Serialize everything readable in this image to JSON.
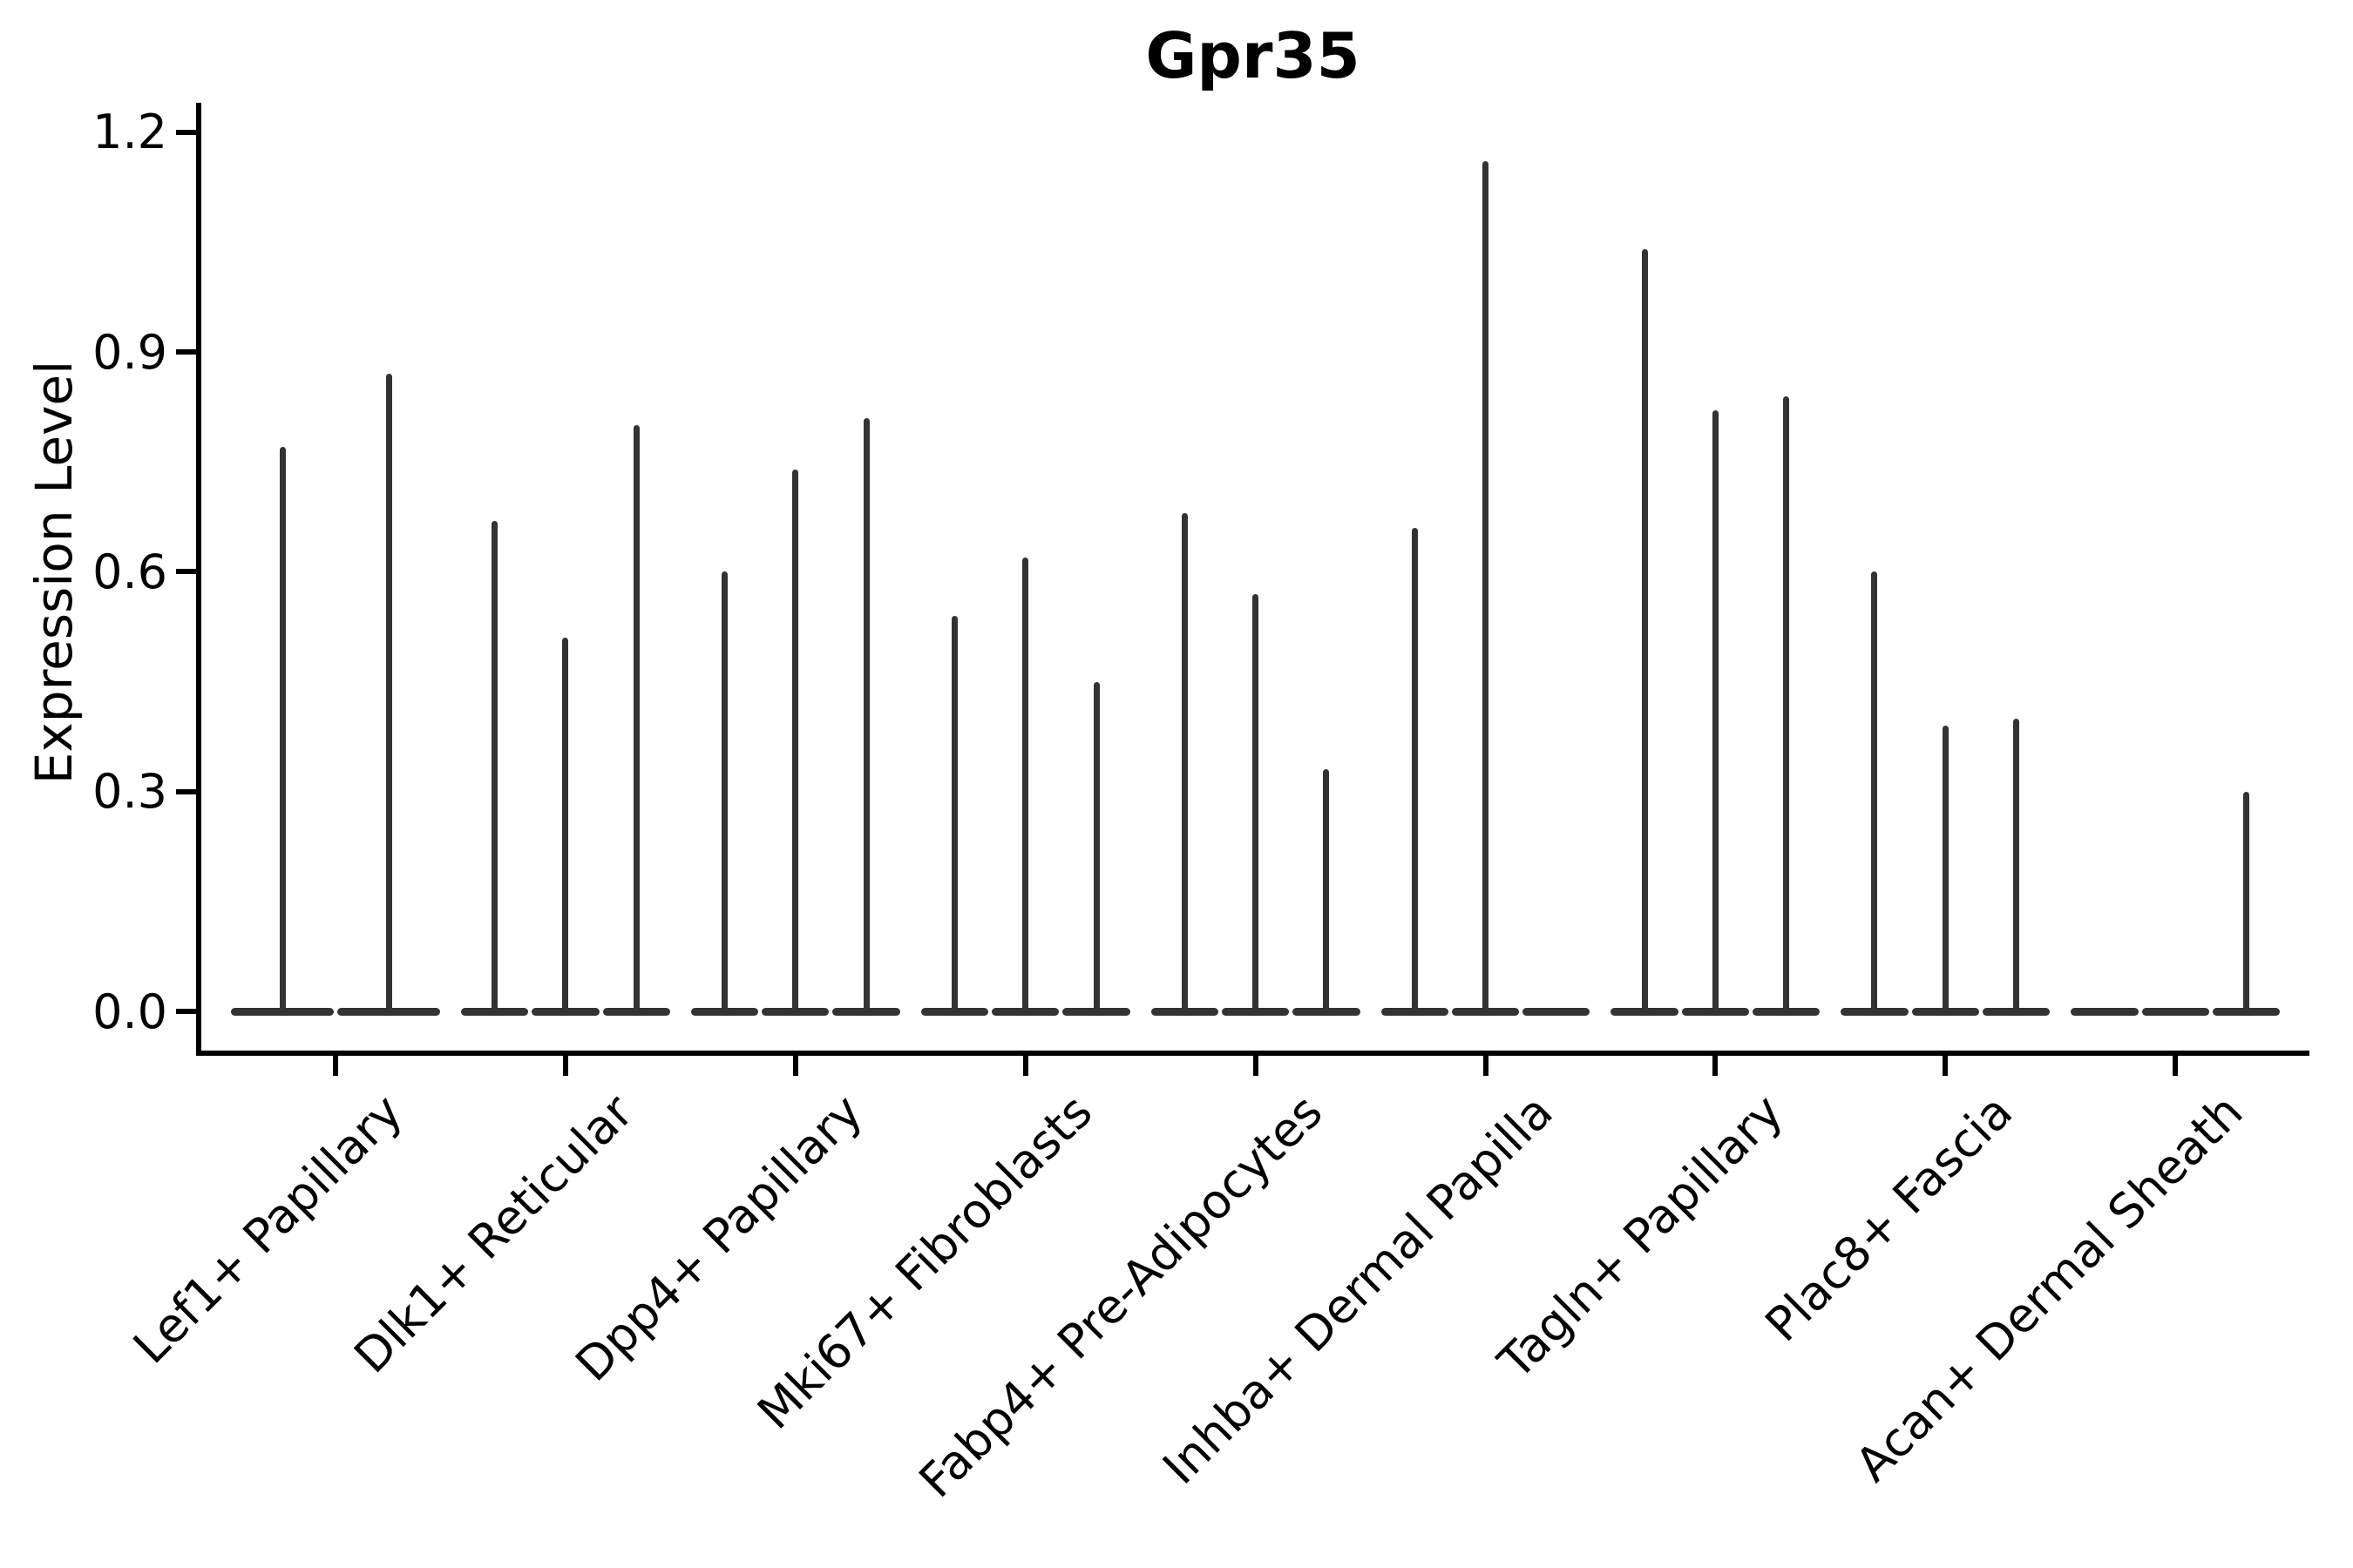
{
  "title": "Gpr35",
  "y_axis": {
    "label": "Expression Level",
    "tick_labels": [
      "0.0",
      "0.3",
      "0.6",
      "0.9",
      "1.2"
    ]
  },
  "chart_data": {
    "type": "violin",
    "title": "Gpr35",
    "xlabel": "",
    "ylabel": "Expression Level",
    "ylim": [
      0,
      1.24
    ],
    "yticks": [
      0.0,
      0.3,
      0.6,
      0.9,
      1.2
    ],
    "grid": false,
    "legend": "none",
    "style_note": "needle violin plot: each violin is a flat mass at 0 with a thin spike up to its max expression value; 0 means a flat violin with no spike",
    "categories": [
      "Lef1+ Papillary",
      "Dlk1+ Reticular",
      "Dpp4+ Papillary",
      "Mki67+ Fibroblasts",
      "Fabp4+ Pre-Adipocytes",
      "Inhba+ Dermal Papilla",
      "Tagln+ Papillary",
      "Plac8+ Fascia",
      "Acan+ Dermal Sheath"
    ],
    "groups": [
      {
        "category": "Lef1+ Papillary",
        "violin_max_values": [
          0.77,
          0.87
        ]
      },
      {
        "category": "Dlk1+ Reticular",
        "violin_max_values": [
          0.67,
          0.51,
          0.8
        ]
      },
      {
        "category": "Dpp4+ Papillary",
        "violin_max_values": [
          0.6,
          0.74,
          0.81
        ]
      },
      {
        "category": "Mki67+ Fibroblasts",
        "violin_max_values": [
          0.54,
          0.62,
          0.45
        ]
      },
      {
        "category": "Fabp4+ Pre-Adipocytes",
        "violin_max_values": [
          0.68,
          0.57,
          0.33
        ]
      },
      {
        "category": "Inhba+ Dermal Papilla",
        "violin_max_values": [
          0.66,
          1.16,
          0.0
        ]
      },
      {
        "category": "Tagln+ Papillary",
        "violin_max_values": [
          1.04,
          0.82,
          0.84
        ]
      },
      {
        "category": "Plac8+ Fascia",
        "violin_max_values": [
          0.6,
          0.39,
          0.4
        ]
      },
      {
        "category": "Acan+ Dermal Sheath",
        "violin_max_values": [
          0.0,
          0.0,
          0.3
        ]
      }
    ]
  },
  "colors": {
    "violin": "#333333",
    "axis": "#000000",
    "text": "#000000",
    "background": "#ffffff"
  }
}
